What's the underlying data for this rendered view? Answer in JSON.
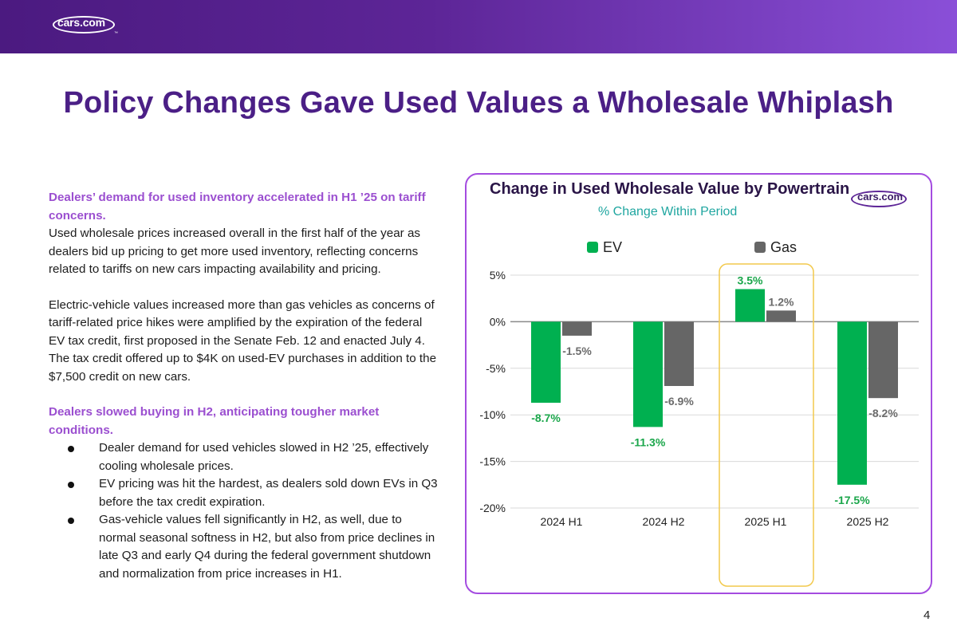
{
  "header": {
    "logo_text": "cars.com",
    "logo_tm": "™"
  },
  "title": "Policy Changes Gave Used Values a Wholesale Whiplash",
  "body": {
    "heading1": "Dealers’ demand for used inventory accelerated in H1 ’25 on tariff concerns.",
    "para1": "Used wholesale prices increased overall in the first half of the year as dealers bid up pricing to get more used inventory, reflecting concerns related to tariffs on new cars impacting availability and pricing.",
    "para2": "Electric-vehicle values increased more than gas vehicles as concerns of tariff-related price hikes were amplified by the expiration of the federal EV tax credit, first proposed in the Senate Feb. 12 and enacted July 4. The tax credit offered up to $4K on used-EV purchases in addition to the $7,500 credit on new cars.",
    "heading2": "Dealers slowed buying in H2, anticipating tougher market conditions.",
    "bullets": [
      "Dealer demand for used vehicles slowed in H2 ’25, effectively cooling wholesale prices.",
      "EV pricing was hit the hardest, as dealers sold down EVs in Q3 before the tax credit expiration.",
      "Gas-vehicle values fell significantly in H2, as well, due to normal seasonal softness in H2, but also from price declines in late Q3 and early Q4 during the federal government shutdown and normalization from price increases in H1."
    ]
  },
  "chart_logo_text": "cars.com",
  "chart_data": {
    "type": "bar",
    "title": "Change in Used Wholesale Value by Powertrain",
    "subtitle": "% Change Within Period",
    "categories": [
      "2024 H1",
      "2024 H2",
      "2025 H1",
      "2025 H2"
    ],
    "series": [
      {
        "name": "EV",
        "values": [
          -8.7,
          -11.3,
          3.5,
          -17.5
        ],
        "labels": [
          "-8.7%",
          "-11.3%",
          "3.5%",
          "-17.5%"
        ],
        "color": "#00b050",
        "label_color": "#1aa64a"
      },
      {
        "name": "Gas",
        "values": [
          -1.5,
          -6.9,
          1.2,
          -8.2
        ],
        "labels": [
          "-1.5%",
          "-6.9%",
          "1.2%",
          "-8.2%"
        ],
        "color": "#666666",
        "label_color": "#6b6b6b"
      }
    ],
    "yticks": [
      "5%",
      "0%",
      "-5%",
      "-10%",
      "-15%",
      "-20%"
    ],
    "ytick_values": [
      5,
      0,
      -5,
      -10,
      -15,
      -20
    ],
    "ylim": [
      -20,
      5
    ],
    "highlight_category": "2025 H1",
    "highlight_color": "#f2c94c"
  },
  "page_number": "4",
  "colors": {
    "brand_purple": "#4b1f86",
    "accent_purple": "#9b4fd0",
    "ev_green": "#00b050",
    "gas_gray": "#666666"
  }
}
